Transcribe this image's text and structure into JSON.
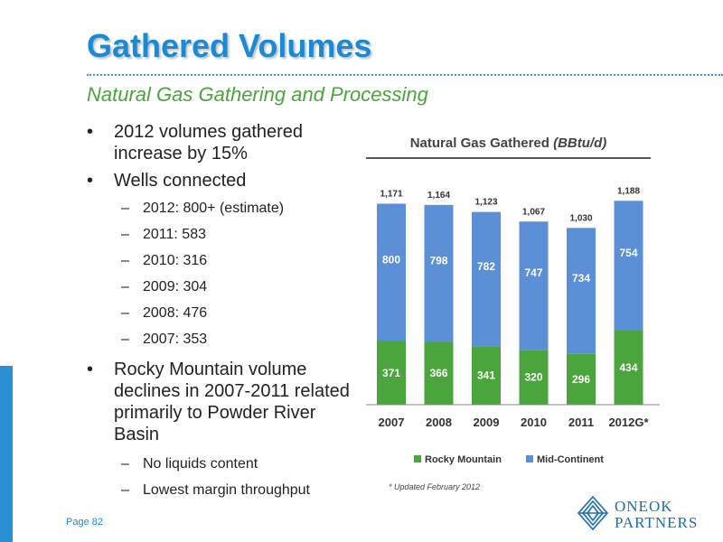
{
  "title": "Gathered Volumes",
  "subtitle": "Natural Gas Gathering and Processing",
  "bullets": [
    {
      "text": "2012 volumes gathered increase by 15%"
    },
    {
      "text": "Wells connected"
    },
    {
      "text": "2012: 800+ (estimate)"
    },
    {
      "text": "2011: 583"
    },
    {
      "text": "2010: 316"
    },
    {
      "text": "2009: 304"
    },
    {
      "text": "2008: 476"
    },
    {
      "text": "2007: 353"
    },
    {
      "text": "Rocky Mountain volume declines in 2007-2011 related primarily to Powder River Basin"
    },
    {
      "text": "No liquids content"
    },
    {
      "text": "Lowest margin throughput"
    }
  ],
  "chart_title_main": "Natural Gas Gathered",
  "chart_title_unit": "(BBtu/d)",
  "footnote": "* Updated February 2012",
  "page_label": "Page 82",
  "logo": {
    "line1": "ONEOK",
    "line2": "PARTNERS"
  },
  "colors": {
    "rocky": "#4aa63c",
    "mid": "#5b8fd6",
    "title": "#1a8ad4",
    "subtitle": "#4aa63c"
  },
  "chart_data": {
    "type": "bar",
    "stacked": true,
    "title": "Natural Gas Gathered (BBtu/d)",
    "categories": [
      "2007",
      "2008",
      "2009",
      "2010",
      "2011",
      "2012G*"
    ],
    "series": [
      {
        "name": "Rocky Mountain",
        "values": [
          371,
          366,
          341,
          320,
          296,
          434
        ]
      },
      {
        "name": "Mid-Continent",
        "values": [
          800,
          798,
          782,
          747,
          734,
          754
        ]
      }
    ],
    "totals": [
      "1,171",
      "1,164",
      "1,123",
      "1,067",
      "1,030",
      "1,188"
    ],
    "ylim": [
      0,
      1200
    ],
    "legend": "bottom",
    "grid": false
  }
}
